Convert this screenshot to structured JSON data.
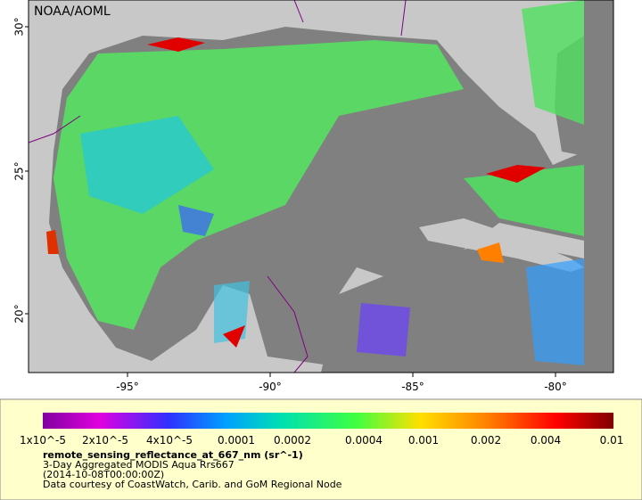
{
  "map": {
    "credit": "NOAA/AOML",
    "lat_labels": [
      "30°",
      "25°",
      "20°"
    ],
    "lon_labels": [
      "-95°",
      "-90°",
      "-85°",
      "-80°"
    ]
  },
  "colorbar": {
    "labels": [
      "1x10^-5",
      "2x10^-5",
      "4x10^-5",
      "0.0001",
      "0.0002",
      "0.0004",
      "0.001",
      "0.002",
      "0.004",
      "0.01"
    ],
    "variable": "remote_sensing_reflectance_at_667_nm (sr^-1)",
    "lines": [
      "3-Day Aggregated MODIS Aqua Rrs667",
      "(2014-10-08T00:00:00Z)",
      "Data courtesy of CoastWatch, Carib. and GoM Regional Node"
    ]
  }
}
